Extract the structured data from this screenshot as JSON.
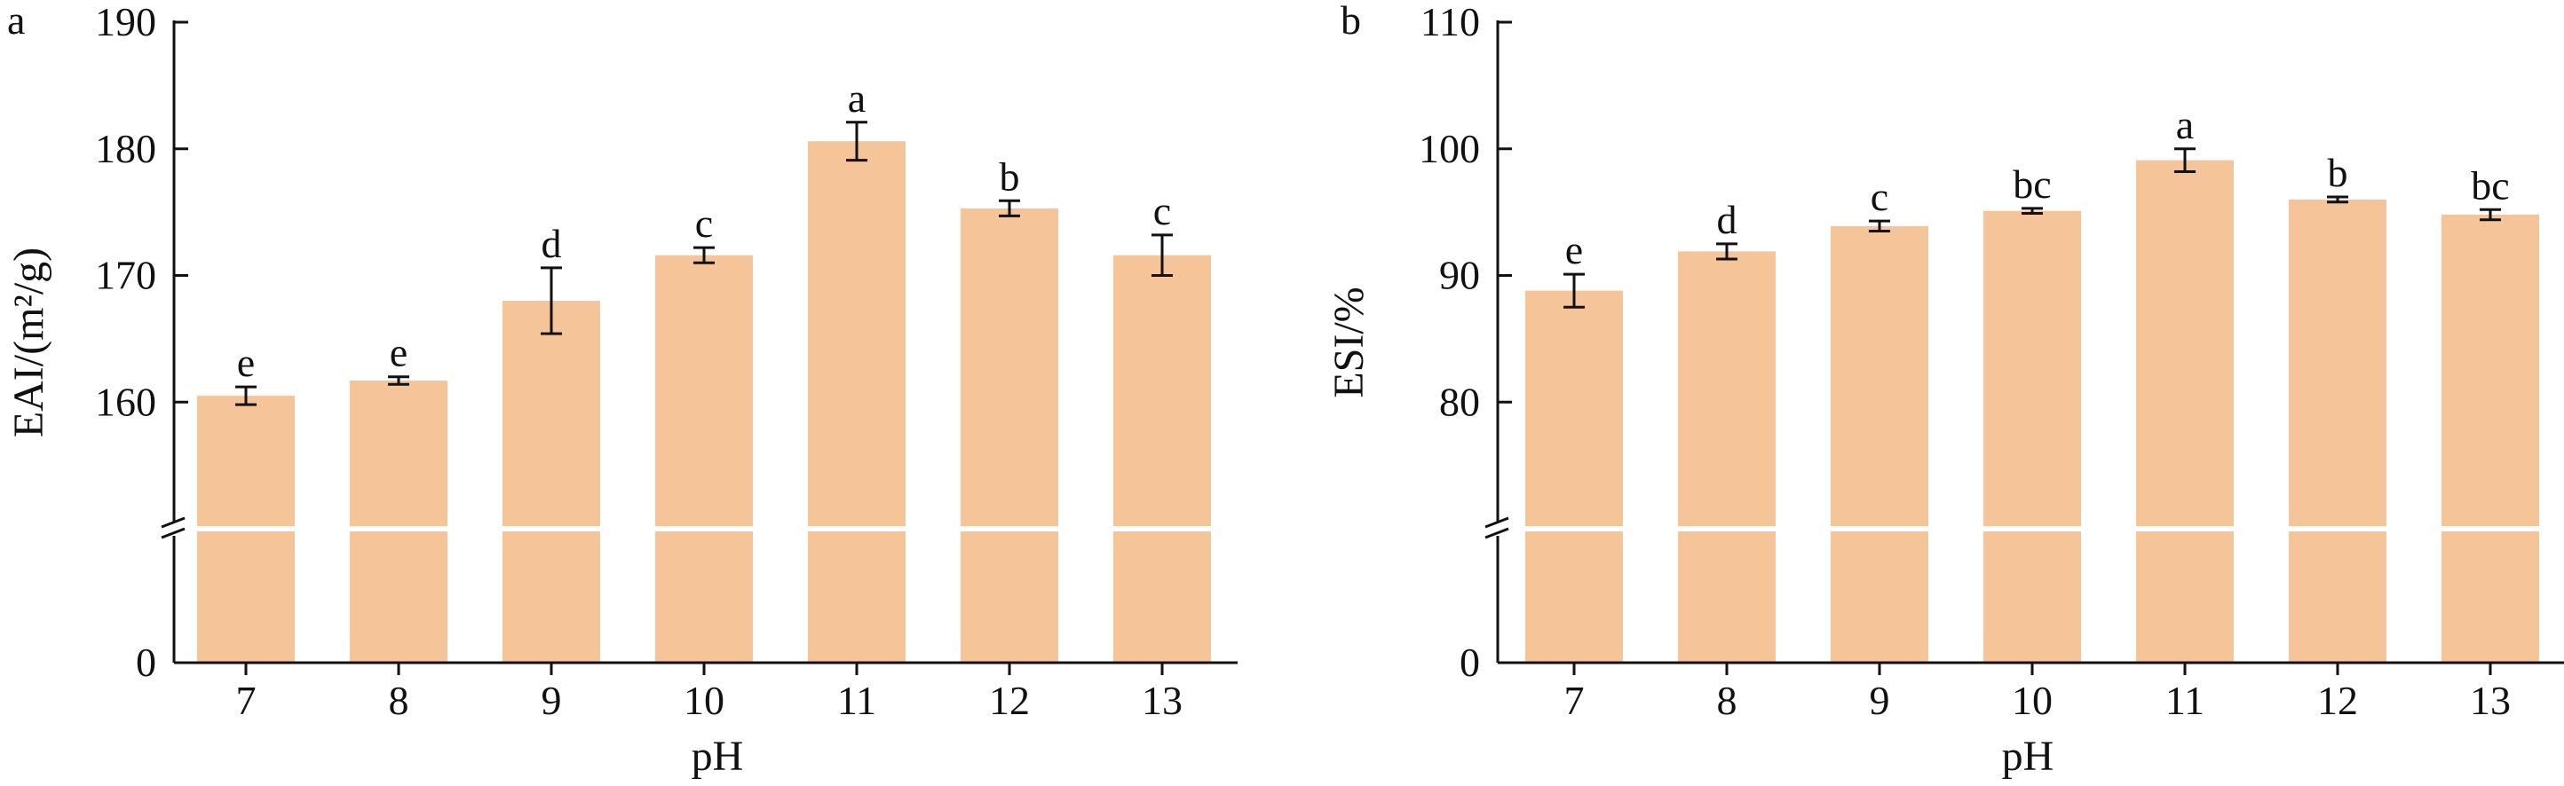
{
  "colors": {
    "bar": "#f5c498",
    "axis": "#111111",
    "break": "#ffffff"
  },
  "chart_data": [
    {
      "panel": "a",
      "type": "bar",
      "xlabel": "pH",
      "ylabel": "EAI/(m²/g)",
      "categories": [
        "7",
        "8",
        "9",
        "10",
        "11",
        "12",
        "13"
      ],
      "values": [
        160.5,
        161.7,
        168.0,
        171.6,
        180.6,
        175.3,
        171.6
      ],
      "errors": [
        0.7,
        0.3,
        2.6,
        0.6,
        1.5,
        0.6,
        1.6
      ],
      "significance": [
        "e",
        "e",
        "d",
        "c",
        "a",
        "b",
        "c"
      ],
      "yticks": [
        "0",
        "160",
        "170",
        "180",
        "190"
      ],
      "y_break": true,
      "ylim_upper": [
        150,
        190
      ],
      "grid": false
    },
    {
      "panel": "b",
      "type": "bar",
      "xlabel": "pH",
      "ylabel": "ESI/%",
      "categories": [
        "7",
        "8",
        "9",
        "10",
        "11",
        "12",
        "13"
      ],
      "values": [
        88.8,
        91.9,
        93.9,
        95.1,
        99.1,
        96.0,
        94.8
      ],
      "errors": [
        1.3,
        0.6,
        0.4,
        0.2,
        0.9,
        0.2,
        0.4
      ],
      "significance": [
        "e",
        "d",
        "c",
        "bc",
        "a",
        "b",
        "bc"
      ],
      "yticks": [
        "0",
        "80",
        "90",
        "100",
        "110"
      ],
      "y_break": true,
      "ylim_upper": [
        70,
        110
      ],
      "grid": false
    }
  ]
}
